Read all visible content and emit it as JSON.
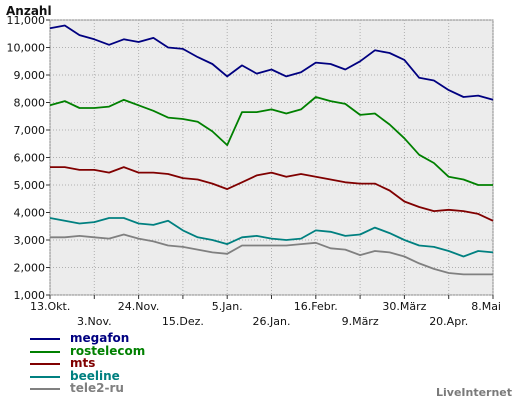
{
  "chart_data": {
    "type": "line",
    "ylabel": "Anzahl",
    "ylim": [
      1000,
      11000
    ],
    "y_ticks": [
      "1,000",
      "2,000",
      "3,000",
      "4,000",
      "5,000",
      "6,000",
      "7,000",
      "8,000",
      "9,000",
      "10,000",
      "11,000"
    ],
    "y_tick_values": [
      1000,
      2000,
      3000,
      4000,
      5000,
      6000,
      7000,
      8000,
      9000,
      10000,
      11000
    ],
    "x_ticks_upper": [
      "13.Okt.",
      "24.Nov.",
      "5.Jan.",
      "16.Febr.",
      "30.März",
      "8.Mai"
    ],
    "x_ticks_lower": [
      "3.Nov.",
      "15.Dez.",
      "26.Jan.",
      "9.März",
      "20.Apr."
    ],
    "grid": true,
    "legend_position": "bottom-left",
    "series": [
      {
        "name": "megafon",
        "color": "#000080",
        "values": [
          10700,
          10800,
          10450,
          10300,
          10100,
          10300,
          10200,
          10350,
          10000,
          9950,
          9650,
          9400,
          8950,
          9350,
          9050,
          9200,
          8950,
          9100,
          9450,
          9400,
          9200,
          9500,
          9900,
          9800,
          9550,
          8900,
          8800,
          8450,
          8200,
          8250,
          8100
        ]
      },
      {
        "name": "rostelecom",
        "color": "#008000",
        "values": [
          7900,
          8050,
          7800,
          7800,
          7850,
          8100,
          7900,
          7700,
          7450,
          7400,
          7300,
          6950,
          6450,
          7650,
          7650,
          7750,
          7600,
          7750,
          8200,
          8050,
          7950,
          7550,
          7600,
          7200,
          6700,
          6100,
          5800,
          5300,
          5200,
          5000,
          5000
        ]
      },
      {
        "name": "mts",
        "color": "#800000",
        "values": [
          5650,
          5650,
          5550,
          5550,
          5450,
          5650,
          5450,
          5450,
          5400,
          5250,
          5200,
          5050,
          4850,
          5100,
          5350,
          5450,
          5300,
          5400,
          5300,
          5200,
          5100,
          5050,
          5050,
          4800,
          4400,
          4200,
          4050,
          4100,
          4050,
          3950,
          3700
        ]
      },
      {
        "name": "beeline",
        "color": "#008080",
        "values": [
          3800,
          3700,
          3600,
          3650,
          3800,
          3800,
          3600,
          3550,
          3700,
          3350,
          3100,
          3000,
          2850,
          3100,
          3150,
          3050,
          3000,
          3050,
          3350,
          3300,
          3150,
          3200,
          3450,
          3250,
          3000,
          2800,
          2750,
          2600,
          2400,
          2600,
          2550
        ]
      },
      {
        "name": "tele2-ru",
        "color": "#808080",
        "values": [
          3100,
          3100,
          3150,
          3100,
          3050,
          3200,
          3050,
          2950,
          2800,
          2750,
          2650,
          2550,
          2500,
          2800,
          2800,
          2800,
          2800,
          2850,
          2900,
          2700,
          2650,
          2450,
          2600,
          2550,
          2400,
          2150,
          1950,
          1800,
          1750,
          1750,
          1750
        ]
      }
    ]
  },
  "credit": "LiveInternet"
}
